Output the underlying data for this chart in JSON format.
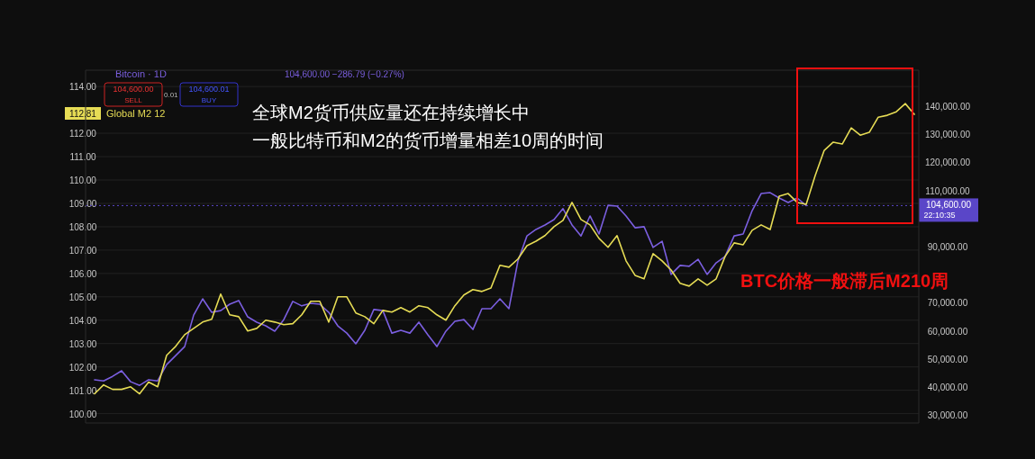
{
  "chart_data": {
    "type": "line",
    "title": "全球M2货币供应量还在持续增长中",
    "subtitle": "一般比特币和M2的货币增量相差10周的时间",
    "categories": [
      null,
      null,
      null,
      null,
      null,
      null,
      null,
      null,
      null,
      null,
      null,
      null,
      null,
      null,
      null,
      null,
      null,
      null,
      null,
      null,
      null,
      null,
      null,
      null,
      null,
      null,
      null,
      null,
      null,
      null,
      null,
      null,
      null,
      null,
      null,
      null,
      null,
      null,
      null,
      null,
      null,
      null,
      null,
      null,
      null,
      null,
      null,
      null,
      null,
      null,
      null,
      null,
      null,
      null,
      null,
      null,
      null,
      null,
      null,
      null,
      null,
      null,
      null,
      null,
      null,
      null,
      null,
      null,
      null,
      null,
      null,
      null,
      null,
      null,
      null,
      null,
      null,
      null,
      null,
      null,
      null,
      null,
      null,
      null,
      null,
      null,
      null,
      null,
      null,
      null,
      null,
      null
    ],
    "series": [
      {
        "name": "Bitcoin · 1D",
        "color": "#7b5fe0",
        "axis": "y2",
        "values": [
          42600,
          42200,
          43800,
          45800,
          41900,
          40600,
          42600,
          42200,
          48000,
          51200,
          54400,
          65600,
          71400,
          66600,
          67200,
          69500,
          70800,
          65000,
          63100,
          61800,
          59900,
          64000,
          70500,
          68900,
          69800,
          69500,
          66600,
          61800,
          59200,
          55400,
          60200,
          67600,
          67200,
          59200,
          60200,
          59200,
          63100,
          58600,
          54400,
          59900,
          63400,
          64000,
          60500,
          67900,
          67900,
          71400,
          67900,
          84900,
          93800,
          96100,
          97700,
          99600,
          103500,
          97700,
          93800,
          100900,
          94500,
          104700,
          104400,
          100900,
          96700,
          97100,
          89700,
          91900,
          80100,
          83300,
          83000,
          85500,
          80100,
          84200,
          86500,
          93800,
          94500,
          102800,
          108900,
          109200,
          107300,
          105700,
          107300,
          104600,
          null,
          null,
          null,
          null,
          null,
          null,
          null,
          null,
          null,
          null,
          null,
          null
        ]
      },
      {
        "name": "Global M2 12",
        "color": "#e6dc55",
        "values": [
          100.85,
          101.23,
          101.04,
          101.04,
          101.15,
          100.85,
          101.35,
          101.15,
          102.5,
          102.88,
          103.38,
          103.65,
          103.92,
          104.04,
          105.12,
          104.23,
          104.15,
          103.54,
          103.65,
          104.0,
          103.92,
          103.81,
          103.85,
          104.23,
          104.81,
          104.81,
          103.92,
          105.0,
          105.0,
          104.31,
          104.15,
          103.85,
          104.42,
          104.35,
          104.54,
          104.35,
          104.62,
          104.54,
          104.23,
          104.0,
          104.62,
          105.08,
          105.31,
          105.23,
          105.38,
          106.35,
          106.27,
          106.62,
          107.19,
          107.38,
          107.62,
          108.0,
          108.27,
          109.04,
          108.31,
          108.08,
          107.5,
          107.12,
          107.62,
          106.54,
          105.92,
          105.77,
          106.85,
          106.54,
          106.15,
          105.58,
          105.46,
          105.77,
          105.5,
          105.77,
          106.73,
          107.31,
          107.23,
          107.85,
          108.08,
          107.88,
          109.31,
          109.42,
          109.04,
          108.96,
          110.19,
          111.27,
          111.62,
          111.54,
          112.23,
          111.92,
          112.04,
          112.69,
          112.77,
          112.92,
          113.27,
          112.81
        ]
      }
    ],
    "ylim": [
      99.6,
      114.7
    ],
    "yticks": [
      {
        "value": 100,
        "label": "100.00"
      },
      {
        "value": 101,
        "label": "101.00"
      },
      {
        "value": 102,
        "label": "102.00"
      },
      {
        "value": 103,
        "label": "103.00"
      },
      {
        "value": 104,
        "label": "104.00"
      },
      {
        "value": 105,
        "label": "105.00"
      },
      {
        "value": 106,
        "label": "106.00"
      },
      {
        "value": 107,
        "label": "107.00"
      },
      {
        "value": 108,
        "label": "108.00"
      },
      {
        "value": 109,
        "label": "109.00"
      },
      {
        "value": 110,
        "label": "110.00"
      },
      {
        "value": 111,
        "label": "111.00"
      },
      {
        "value": 112,
        "label": "112.00"
      },
      {
        "value": 114,
        "label": "114.00"
      }
    ],
    "y2lim": [
      27200,
      152800
    ],
    "y2ticks": [
      {
        "value": 30000,
        "label": "30,000.00"
      },
      {
        "value": 40000,
        "label": "40,000.00"
      },
      {
        "value": 50000,
        "label": "50,000.00"
      },
      {
        "value": 60000,
        "label": "60,000.00"
      },
      {
        "value": 70000,
        "label": "70,000.00"
      },
      {
        "value": 90000,
        "label": "90,000.00"
      },
      {
        "value": 110000,
        "label": "110,000.00"
      },
      {
        "value": 120000,
        "label": "120,000.00"
      },
      {
        "value": 130000,
        "label": "130,000.00"
      },
      {
        "value": 140000,
        "label": "140,000.00"
      }
    ],
    "ref_lines": [
      {
        "axis": "y2",
        "value": 104600,
        "label": "104,600.00",
        "color": "#5a46c8",
        "line_style": "dotted"
      }
    ],
    "annotations": [
      "104,600.00 −286.79 (−0.27%)",
      "104,600.00",
      "SELL",
      "0.01",
      "104,600.01",
      "BUY",
      "BTC价格一般滞后M210周",
      "22:10:35",
      "112.81"
    ],
    "grid": "y",
    "legend": "top left"
  }
}
